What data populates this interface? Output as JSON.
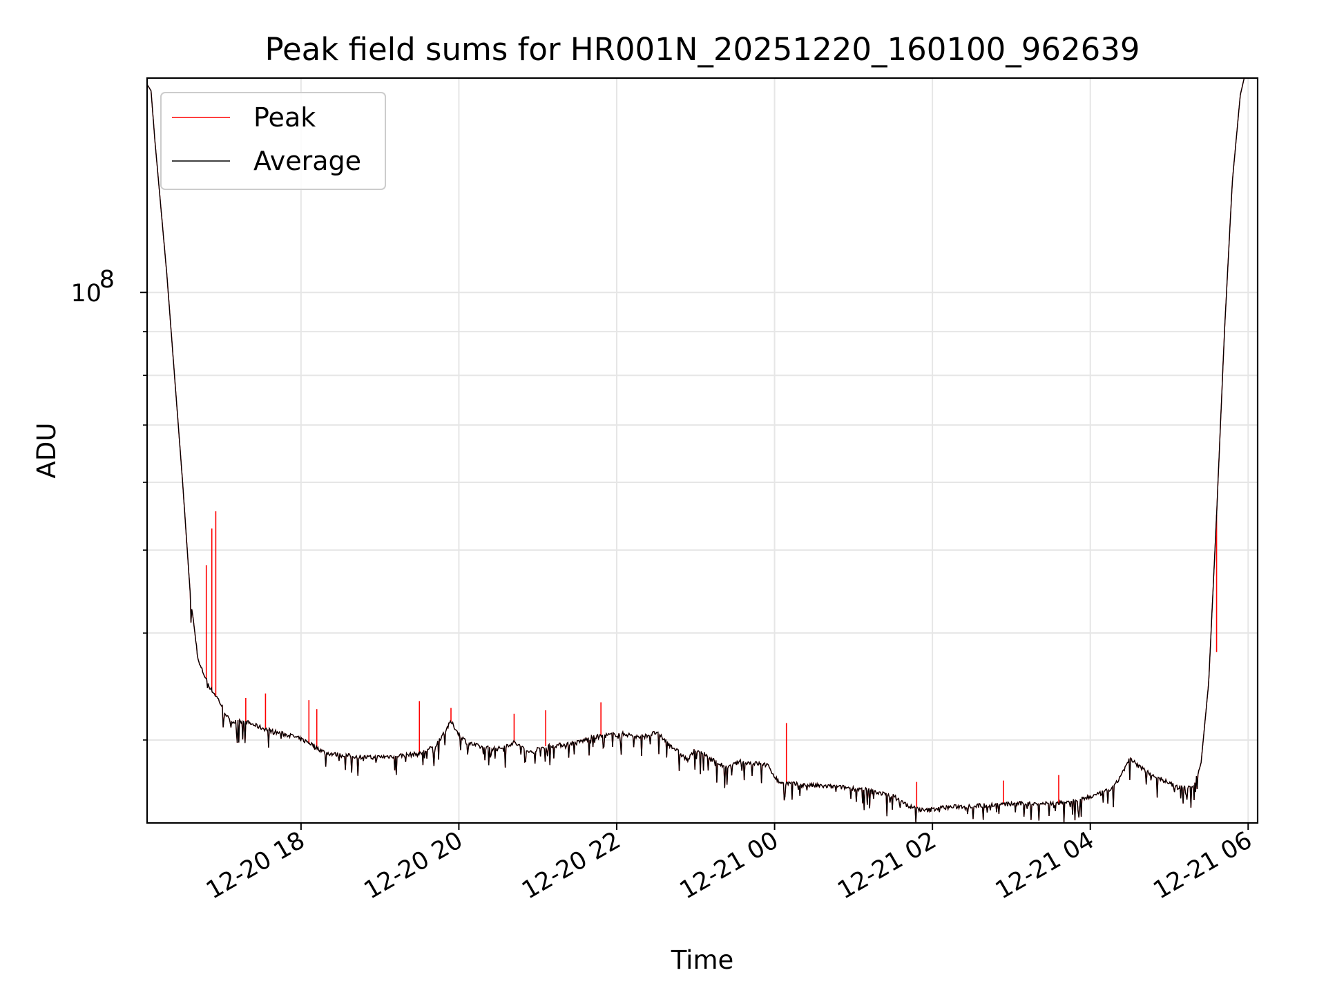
{
  "chart_data": {
    "type": "line",
    "title": "Peak field sums for HR001N_20251220_160100_962639",
    "xlabel": "Time",
    "ylabel": "ADU",
    "yscale": "log",
    "ylim": [
      24000000,
      178000000
    ],
    "x_range_hours": [
      16.05,
      30.12
    ],
    "x_ticks": [
      {
        "hour": 18,
        "label": "12-20 18"
      },
      {
        "hour": 20,
        "label": "12-20 20"
      },
      {
        "hour": 22,
        "label": "12-20 22"
      },
      {
        "hour": 24,
        "label": "12-21 00"
      },
      {
        "hour": 26,
        "label": "12-21 02"
      },
      {
        "hour": 28,
        "label": "12-21 04"
      },
      {
        "hour": 30,
        "label": "12-21 06"
      }
    ],
    "y_major_ticks": [
      {
        "value": 100000000,
        "base": "10",
        "exp": "8"
      }
    ],
    "y_minor_ticks": [
      30000000,
      40000000,
      50000000,
      60000000,
      70000000,
      80000000,
      90000000
    ],
    "grid": true,
    "legend": {
      "position": "top-left",
      "entries": [
        {
          "name": "Peak",
          "color": "#ff0000"
        },
        {
          "name": "Average",
          "color": "#000000"
        }
      ]
    },
    "series": [
      {
        "name": "Average",
        "color": "#000000",
        "x_hours": [
          16.05,
          16.1,
          16.15,
          16.3,
          16.5,
          16.6,
          16.7,
          16.85,
          16.95,
          17.1,
          17.3,
          17.5,
          17.7,
          17.9,
          18.1,
          18.3,
          18.5,
          18.7,
          18.9,
          19.1,
          19.3,
          19.5,
          19.7,
          19.8,
          19.9,
          20.0,
          20.1,
          20.3,
          20.5,
          20.7,
          20.9,
          21.1,
          21.3,
          21.5,
          21.7,
          21.9,
          22.1,
          22.3,
          22.5,
          22.7,
          22.9,
          23.0,
          23.2,
          23.4,
          23.55,
          23.7,
          23.9,
          24.05,
          24.3,
          24.6,
          24.9,
          25.2,
          25.5,
          25.7,
          25.9,
          26.1,
          26.4,
          26.8,
          27.2,
          27.6,
          27.9,
          28.1,
          28.3,
          28.5,
          28.7,
          28.9,
          29.1,
          29.3,
          29.4,
          29.5,
          29.6,
          29.7,
          29.8,
          29.9,
          29.95
        ],
        "values": [
          175000000,
          172000000,
          150000000,
          105000000,
          60000000,
          44000000,
          37000000,
          34500000,
          33500000,
          31500000,
          31500000,
          31000000,
          30600000,
          30300000,
          29800000,
          29000000,
          28800000,
          28700000,
          28600000,
          28700000,
          28800000,
          28900000,
          29500000,
          30500000,
          31500000,
          30500000,
          29800000,
          29400000,
          29300000,
          29800000,
          29000000,
          29500000,
          29600000,
          29800000,
          30200000,
          30400000,
          30500000,
          30200000,
          30600000,
          29500000,
          28400000,
          29300000,
          28500000,
          27800000,
          28300000,
          28200000,
          28100000,
          26800000,
          26600000,
          26500000,
          26400000,
          26200000,
          25800000,
          25100000,
          24800000,
          25000000,
          25100000,
          25200000,
          25300000,
          25300000,
          25600000,
          25900000,
          26400000,
          28500000,
          27600000,
          27000000,
          26400000,
          26500000,
          28000000,
          35000000,
          55000000,
          90000000,
          135000000,
          170000000,
          178000000
        ]
      },
      {
        "name": "Peak",
        "color": "#ff0000",
        "spikes": [
          {
            "hour": 16.55,
            "value": 51000000
          },
          {
            "hour": 16.8,
            "value": 48000000
          },
          {
            "hour": 16.87,
            "value": 53000000
          },
          {
            "hour": 16.92,
            "value": 55500000
          },
          {
            "hour": 17.3,
            "value": 33600000
          },
          {
            "hour": 17.55,
            "value": 34000000
          },
          {
            "hour": 18.1,
            "value": 33400000
          },
          {
            "hour": 18.2,
            "value": 32600000
          },
          {
            "hour": 19.5,
            "value": 33300000
          },
          {
            "hour": 19.9,
            "value": 32700000
          },
          {
            "hour": 20.7,
            "value": 32200000
          },
          {
            "hour": 21.1,
            "value": 32500000
          },
          {
            "hour": 21.8,
            "value": 33200000
          },
          {
            "hour": 24.15,
            "value": 31400000
          },
          {
            "hour": 25.8,
            "value": 26800000
          },
          {
            "hour": 26.9,
            "value": 26900000
          },
          {
            "hour": 27.6,
            "value": 27300000
          },
          {
            "hour": 29.6,
            "value": 38000000
          }
        ]
      }
    ]
  }
}
